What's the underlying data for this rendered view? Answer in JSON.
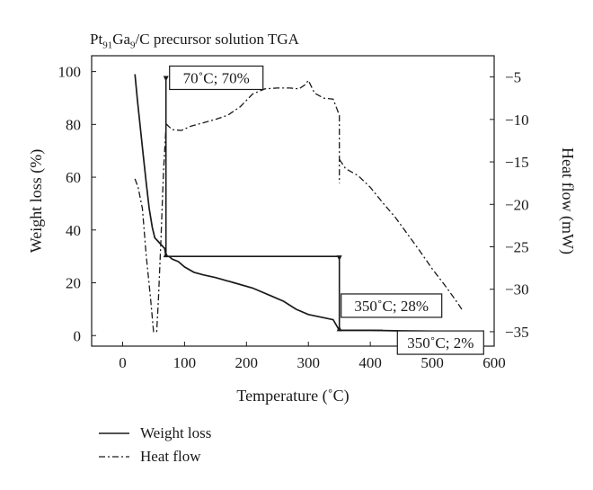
{
  "chart_data": {
    "type": "line",
    "title": {
      "main": "Pt",
      "sub1": "91",
      "mid": "Ga",
      "sub2": "9",
      "tail": "/C precursor solution TGA"
    },
    "xlabel": "Temperature (˚C)",
    "ylabel_left": "Weight loss (%)",
    "ylabel_right": "Heat flow (mW)",
    "xlim": [
      -50,
      600
    ],
    "ylim_left": [
      -4,
      106
    ],
    "ylim_right": [
      -36.7,
      -2.5
    ],
    "x_ticks": [
      0,
      100,
      200,
      300,
      400,
      500,
      600
    ],
    "y_left_ticks": [
      0,
      20,
      40,
      60,
      80,
      100
    ],
    "y_right_ticks": [
      -5,
      -10,
      -15,
      -20,
      -25,
      -30,
      -35
    ],
    "series": [
      {
        "name": "Weight loss",
        "axis": "left",
        "style": "solid",
        "x": [
          20,
          24,
          28,
          33,
          38,
          43,
          48,
          52,
          56,
          60,
          64,
          68,
          70,
          75,
          80,
          90,
          100,
          115,
          130,
          150,
          180,
          210,
          240,
          260,
          280,
          300,
          320,
          340,
          350,
          400,
          450,
          500,
          550
        ],
        "y": [
          99,
          89,
          80,
          69,
          58,
          48,
          41,
          37,
          36,
          35,
          34,
          33,
          30,
          30,
          29,
          28,
          26,
          24,
          23,
          22,
          20,
          18,
          15,
          13,
          10,
          8,
          7,
          6,
          2,
          2,
          1.8,
          1.7,
          1.6
        ]
      },
      {
        "name": "Heat flow",
        "axis": "right",
        "style": "dashdot",
        "segments": [
          {
            "x": [
              20,
              25,
              32,
              38,
              45,
              50,
              55,
              58,
              62,
              66,
              70
            ],
            "y": [
              -17,
              -18,
              -20.5,
              -26,
              -31,
              -35,
              -35,
              -31,
              -24,
              -16,
              -11
            ]
          },
          {
            "x": [
              70,
              80,
              95,
              110,
              130,
              150,
              170,
              190,
              210,
              230,
              250,
              270,
              285,
              295,
              300,
              310,
              325,
              340,
              350
            ],
            "y": [
              -10.5,
              -11.2,
              -11.3,
              -10.8,
              -10.4,
              -10,
              -9.5,
              -8.5,
              -7,
              -6.4,
              -6.3,
              -6.3,
              -6.4,
              -5.9,
              -5.4,
              -6.9,
              -7.5,
              -7.6,
              -9.5
            ]
          },
          {
            "x": [
              350,
              350
            ],
            "y": [
              -9.5,
              -17.5
            ]
          },
          {
            "x": [
              350,
              360,
              380,
              400,
              420,
              440,
              460,
              480,
              500,
              520,
              540,
              550
            ],
            "y": [
              -14.7,
              -15.8,
              -16.6,
              -18,
              -19.8,
              -21.5,
              -23.5,
              -25.5,
              -27.6,
              -29.5,
              -31.5,
              -32.6
            ]
          }
        ]
      }
    ],
    "step_line": {
      "x": [
        70,
        70,
        70,
        350,
        350,
        350,
        420
      ],
      "y": [
        98,
        98,
        30,
        30,
        30,
        2,
        2
      ]
    },
    "annotations": [
      {
        "text": "70˚C; 70%",
        "x": 70,
        "y": 98
      },
      {
        "text": "350˚C; 28%",
        "x": 350,
        "y": 11
      },
      {
        "text": "350˚C; 2%",
        "x": 480,
        "y": -3
      }
    ],
    "legend": {
      "placement": "bottom-left"
    }
  }
}
